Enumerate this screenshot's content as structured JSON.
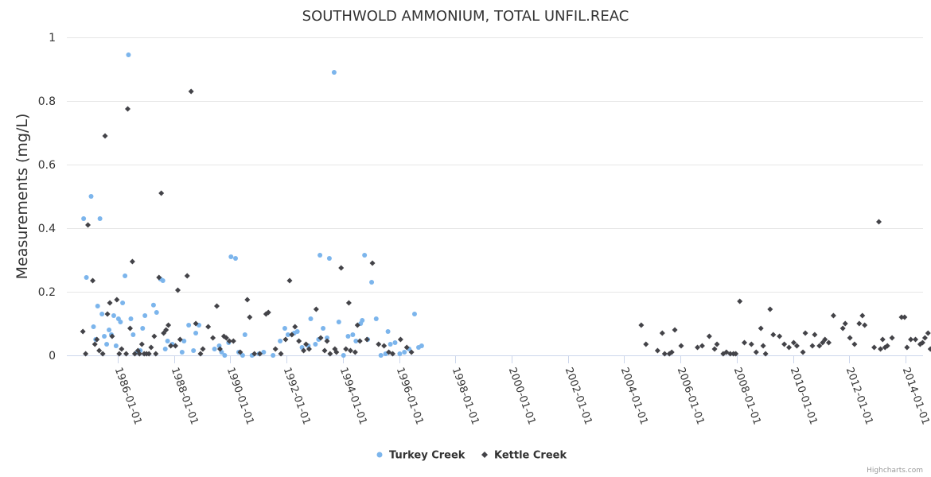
{
  "chart_data": {
    "type": "scatter",
    "title": "SOUTHWOLD AMMONIUM, TOTAL UNFIL.REAC",
    "ylabel": "Measurements (mg/L)",
    "xlabel": "",
    "ylim": [
      0,
      1
    ],
    "yticks": [
      "0",
      "0.2",
      "0.4",
      "0.6",
      "0.8",
      "1"
    ],
    "xlim": [
      "1984-09-01",
      "2014-10-01"
    ],
    "xticks": [
      "1986-01-01",
      "1988-01-01",
      "1990-01-01",
      "1992-01-01",
      "1994-01-01",
      "1996-01-01",
      "1998-01-01",
      "2000-01-01",
      "2002-01-01",
      "2004-01-01",
      "2006-01-01",
      "2008-01-01",
      "2010-01-01",
      "2012-01-01",
      "2014-01-01"
    ],
    "grid": "horizontal",
    "legend_position": "bottom-center",
    "credits": "Highcharts.com",
    "series": [
      {
        "name": "Turkey Creek",
        "color": "#7cb5ec",
        "marker": "circle",
        "points": [
          [
            "1984-10-15",
            0.43
          ],
          [
            "1984-11-20",
            0.245
          ],
          [
            "1985-01-20",
            0.5
          ],
          [
            "1985-02-20",
            0.09
          ],
          [
            "1985-03-20",
            0.05
          ],
          [
            "1985-04-15",
            0.155
          ],
          [
            "1985-05-15",
            0.43
          ],
          [
            "1985-06-10",
            0.13
          ],
          [
            "1985-07-10",
            0.06
          ],
          [
            "1985-08-10",
            0.035
          ],
          [
            "1985-09-10",
            0.08
          ],
          [
            "1985-10-10",
            0.065
          ],
          [
            "1985-11-10",
            0.125
          ],
          [
            "1985-12-10",
            0.03
          ],
          [
            "1986-01-10",
            0.115
          ],
          [
            "1986-02-05",
            0.105
          ],
          [
            "1986-03-05",
            0.165
          ],
          [
            "1986-04-05",
            0.25
          ],
          [
            "1986-05-20",
            0.945
          ],
          [
            "1986-06-20",
            0.115
          ],
          [
            "1986-07-20",
            0.065
          ],
          [
            "1986-09-10",
            0.01
          ],
          [
            "1986-10-20",
            0.015
          ],
          [
            "1986-11-20",
            0.085
          ],
          [
            "1986-12-20",
            0.125
          ],
          [
            "1987-04-10",
            0.158
          ],
          [
            "1987-05-20",
            0.135
          ],
          [
            "1987-07-10",
            0.24
          ],
          [
            "1987-08-10",
            0.235
          ],
          [
            "1987-09-10",
            0.02
          ],
          [
            "1987-10-10",
            0.045
          ],
          [
            "1987-12-10",
            0.035
          ],
          [
            "1988-04-15",
            0.01
          ],
          [
            "1988-05-10",
            0.045
          ],
          [
            "1988-07-10",
            0.095
          ],
          [
            "1988-09-10",
            0.015
          ],
          [
            "1988-10-10",
            0.07
          ],
          [
            "1988-11-20",
            0.095
          ],
          [
            "1989-06-10",
            0.02
          ],
          [
            "1989-08-10",
            0.03
          ],
          [
            "1989-09-10",
            0.01
          ],
          [
            "1989-10-20",
            0.0
          ],
          [
            "1989-12-10",
            0.04
          ],
          [
            "1990-01-10",
            0.31
          ],
          [
            "1990-03-10",
            0.305
          ],
          [
            "1990-04-20",
            0.01
          ],
          [
            "1990-06-10",
            0.0
          ],
          [
            "1990-07-10",
            0.065
          ],
          [
            "1990-10-10",
            0.0
          ],
          [
            "1991-01-10",
            0.005
          ],
          [
            "1991-03-10",
            0.01
          ],
          [
            "1991-07-10",
            0.0
          ],
          [
            "1991-10-10",
            0.045
          ],
          [
            "1991-12-10",
            0.085
          ],
          [
            "1992-01-20",
            0.065
          ],
          [
            "1992-04-10",
            0.07
          ],
          [
            "1992-05-20",
            0.075
          ],
          [
            "1992-07-20",
            0.025
          ],
          [
            "1992-10-10",
            0.03
          ],
          [
            "1992-11-10",
            0.115
          ],
          [
            "1993-01-10",
            0.035
          ],
          [
            "1993-02-20",
            0.05
          ],
          [
            "1993-03-10",
            0.315
          ],
          [
            "1993-04-20",
            0.085
          ],
          [
            "1993-06-10",
            0.055
          ],
          [
            "1993-07-10",
            0.305
          ],
          [
            "1993-09-10",
            0.89
          ],
          [
            "1993-11-10",
            0.105
          ],
          [
            "1994-01-10",
            0.0
          ],
          [
            "1994-03-10",
            0.06
          ],
          [
            "1994-05-10",
            0.065
          ],
          [
            "1994-06-20",
            0.045
          ],
          [
            "1994-08-20",
            0.1
          ],
          [
            "1994-09-10",
            0.11
          ],
          [
            "1994-10-10",
            0.315
          ],
          [
            "1994-11-20",
            0.05
          ],
          [
            "1995-01-10",
            0.23
          ],
          [
            "1995-03-10",
            0.115
          ],
          [
            "1995-05-10",
            0.0
          ],
          [
            "1995-07-10",
            0.005
          ],
          [
            "1995-08-10",
            0.075
          ],
          [
            "1995-09-10",
            0.035
          ],
          [
            "1995-11-10",
            0.04
          ],
          [
            "1996-01-10",
            0.005
          ],
          [
            "1996-03-10",
            0.01
          ],
          [
            "1996-05-10",
            0.02
          ],
          [
            "1996-07-20",
            0.13
          ],
          [
            "1996-09-10",
            0.025
          ],
          [
            "1996-10-20",
            0.03
          ]
        ]
      },
      {
        "name": "Kettle Creek",
        "color": "#434348",
        "marker": "diamond",
        "points": [
          [
            "1984-10-05",
            0.075
          ],
          [
            "1984-11-10",
            0.005
          ],
          [
            "1984-12-10",
            0.41
          ],
          [
            "1985-02-10",
            0.235
          ],
          [
            "1985-03-10",
            0.035
          ],
          [
            "1985-04-05",
            0.05
          ],
          [
            "1985-05-05",
            0.015
          ],
          [
            "1985-06-20",
            0.005
          ],
          [
            "1985-07-20",
            0.69
          ],
          [
            "1985-08-20",
            0.13
          ],
          [
            "1985-09-20",
            0.165
          ],
          [
            "1985-10-20",
            0.06
          ],
          [
            "1985-12-20",
            0.175
          ],
          [
            "1986-01-20",
            0.005
          ],
          [
            "1986-02-20",
            0.02
          ],
          [
            "1986-04-20",
            0.005
          ],
          [
            "1986-05-10",
            0.775
          ],
          [
            "1986-06-10",
            0.085
          ],
          [
            "1986-07-10",
            0.295
          ],
          [
            "1986-08-10",
            0.005
          ],
          [
            "1986-09-20",
            0.015
          ],
          [
            "1986-10-10",
            0.005
          ],
          [
            "1986-11-10",
            0.035
          ],
          [
            "1986-12-10",
            0.005
          ],
          [
            "1987-01-10",
            0.005
          ],
          [
            "1987-02-10",
            0.005
          ],
          [
            "1987-03-10",
            0.025
          ],
          [
            "1987-04-20",
            0.06
          ],
          [
            "1987-05-10",
            0.005
          ],
          [
            "1987-06-20",
            0.245
          ],
          [
            "1987-07-20",
            0.51
          ],
          [
            "1987-08-20",
            0.07
          ],
          [
            "1987-09-20",
            0.08
          ],
          [
            "1987-10-20",
            0.095
          ],
          [
            "1987-11-20",
            0.03
          ],
          [
            "1988-01-20",
            0.03
          ],
          [
            "1988-02-20",
            0.205
          ],
          [
            "1988-03-20",
            0.05
          ],
          [
            "1988-06-20",
            0.25
          ],
          [
            "1988-08-10",
            0.83
          ],
          [
            "1988-10-10",
            0.1
          ],
          [
            "1988-12-10",
            0.005
          ],
          [
            "1989-01-10",
            0.02
          ],
          [
            "1989-03-20",
            0.09
          ],
          [
            "1989-05-20",
            0.055
          ],
          [
            "1989-07-10",
            0.155
          ],
          [
            "1989-08-20",
            0.02
          ],
          [
            "1989-10-10",
            0.06
          ],
          [
            "1989-11-10",
            0.055
          ],
          [
            "1989-12-20",
            0.045
          ],
          [
            "1990-02-10",
            0.045
          ],
          [
            "1990-05-10",
            0.01
          ],
          [
            "1990-08-10",
            0.175
          ],
          [
            "1990-09-10",
            0.12
          ],
          [
            "1990-11-10",
            0.005
          ],
          [
            "1991-01-20",
            0.005
          ],
          [
            "1991-04-10",
            0.13
          ],
          [
            "1991-05-10",
            0.135
          ],
          [
            "1991-08-10",
            0.02
          ],
          [
            "1991-10-20",
            0.005
          ],
          [
            "1991-12-20",
            0.05
          ],
          [
            "1992-02-10",
            0.235
          ],
          [
            "1992-03-10",
            0.065
          ],
          [
            "1992-04-20",
            0.09
          ],
          [
            "1992-06-10",
            0.045
          ],
          [
            "1992-08-10",
            0.015
          ],
          [
            "1992-09-10",
            0.035
          ],
          [
            "1992-10-20",
            0.02
          ],
          [
            "1993-01-20",
            0.145
          ],
          [
            "1993-03-20",
            0.055
          ],
          [
            "1993-05-10",
            0.015
          ],
          [
            "1993-06-10",
            0.045
          ],
          [
            "1993-07-20",
            0.005
          ],
          [
            "1993-09-20",
            0.02
          ],
          [
            "1993-10-10",
            0.01
          ],
          [
            "1993-12-10",
            0.275
          ],
          [
            "1994-02-10",
            0.02
          ],
          [
            "1994-03-20",
            0.165
          ],
          [
            "1994-04-10",
            0.015
          ],
          [
            "1994-06-10",
            0.01
          ],
          [
            "1994-07-10",
            0.095
          ],
          [
            "1994-08-10",
            0.045
          ],
          [
            "1994-11-10",
            0.05
          ],
          [
            "1995-01-20",
            0.29
          ],
          [
            "1995-04-10",
            0.035
          ],
          [
            "1995-06-20",
            0.03
          ],
          [
            "1995-08-20",
            0.01
          ],
          [
            "1995-10-10",
            0.005
          ],
          [
            "1996-01-20",
            0.05
          ],
          [
            "1996-04-10",
            0.025
          ],
          [
            "1996-06-10",
            0.01
          ],
          [
            "2004-08-10",
            0.095
          ],
          [
            "2004-10-10",
            0.035
          ],
          [
            "2005-03-10",
            0.015
          ],
          [
            "2005-05-10",
            0.07
          ],
          [
            "2005-06-10",
            0.005
          ],
          [
            "2005-08-10",
            0.005
          ],
          [
            "2005-09-10",
            0.01
          ],
          [
            "2005-10-20",
            0.08
          ],
          [
            "2006-01-10",
            0.03
          ],
          [
            "2006-08-10",
            0.025
          ],
          [
            "2006-10-10",
            0.03
          ],
          [
            "2007-01-10",
            0.06
          ],
          [
            "2007-03-20",
            0.02
          ],
          [
            "2007-04-20",
            0.035
          ],
          [
            "2007-07-10",
            0.005
          ],
          [
            "2007-08-20",
            0.01
          ],
          [
            "2007-10-10",
            0.005
          ],
          [
            "2007-11-20",
            0.005
          ],
          [
            "2007-12-20",
            0.005
          ],
          [
            "2008-02-10",
            0.17
          ],
          [
            "2008-04-10",
            0.04
          ],
          [
            "2008-07-10",
            0.035
          ],
          [
            "2008-09-10",
            0.01
          ],
          [
            "2008-11-10",
            0.085
          ],
          [
            "2008-12-10",
            0.03
          ],
          [
            "2009-01-10",
            0.005
          ],
          [
            "2009-03-10",
            0.145
          ],
          [
            "2009-04-20",
            0.065
          ],
          [
            "2009-07-10",
            0.06
          ],
          [
            "2009-09-10",
            0.035
          ],
          [
            "2009-11-10",
            0.025
          ],
          [
            "2010-01-10",
            0.04
          ],
          [
            "2010-02-20",
            0.03
          ],
          [
            "2010-05-10",
            0.01
          ],
          [
            "2010-06-10",
            0.07
          ],
          [
            "2010-09-10",
            0.03
          ],
          [
            "2010-10-10",
            0.065
          ],
          [
            "2010-12-10",
            0.03
          ],
          [
            "2011-01-20",
            0.04
          ],
          [
            "2011-02-20",
            0.05
          ],
          [
            "2011-04-10",
            0.04
          ],
          [
            "2011-06-10",
            0.125
          ],
          [
            "2011-10-10",
            0.085
          ],
          [
            "2011-11-10",
            0.1
          ],
          [
            "2012-01-10",
            0.055
          ],
          [
            "2012-03-10",
            0.035
          ],
          [
            "2012-05-10",
            0.1
          ],
          [
            "2012-06-20",
            0.125
          ],
          [
            "2012-07-20",
            0.095
          ],
          [
            "2012-11-20",
            0.025
          ],
          [
            "2013-01-20",
            0.42
          ],
          [
            "2013-02-10",
            0.02
          ],
          [
            "2013-03-10",
            0.05
          ],
          [
            "2013-04-10",
            0.025
          ],
          [
            "2013-05-10",
            0.03
          ],
          [
            "2013-07-10",
            0.055
          ],
          [
            "2013-11-10",
            0.12
          ],
          [
            "2013-12-20",
            0.12
          ],
          [
            "2014-01-20",
            0.025
          ],
          [
            "2014-03-10",
            0.05
          ],
          [
            "2014-05-10",
            0.05
          ],
          [
            "2014-07-10",
            0.035
          ],
          [
            "2014-08-10",
            0.04
          ],
          [
            "2014-09-10",
            0.055
          ],
          [
            "2014-10-20",
            0.07
          ],
          [
            "2014-11-20",
            0.02
          ]
        ]
      }
    ]
  }
}
